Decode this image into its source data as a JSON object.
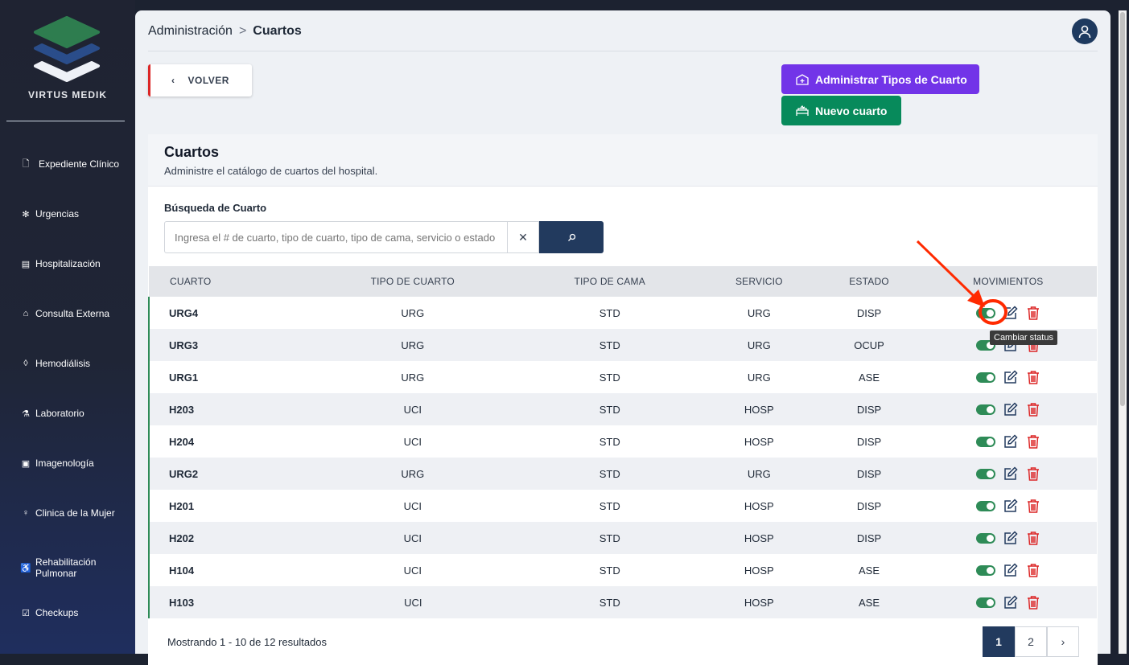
{
  "sidebar": {
    "brand": "VIRTUS MEDIK",
    "items": [
      {
        "label": "Expediente Clínico",
        "icon": "file-plus-icon"
      },
      {
        "label": "Urgencias",
        "icon": "asterisk-icon"
      },
      {
        "label": "Hospitalización",
        "icon": "building-icon"
      },
      {
        "label": "Consulta Externa",
        "icon": "clinic-icon"
      },
      {
        "label": "Hemodiálisis",
        "icon": "drop-icon"
      },
      {
        "label": "Laboratorio",
        "icon": "flask-icon"
      },
      {
        "label": "Imagenología",
        "icon": "image-icon"
      },
      {
        "label": "Clinica de la  Mujer",
        "icon": "female-icon"
      },
      {
        "label": "Rehabilitación Pulmonar",
        "icon": "wheelchair-icon"
      },
      {
        "label": "Checkups",
        "icon": "checkbox-icon"
      }
    ]
  },
  "breadcrumb": {
    "parent": "Administración",
    "current": "Cuartos"
  },
  "toolbar": {
    "back": "VOLVER",
    "manage_types": "Administrar Tipos de Cuarto",
    "new_room": "Nuevo cuarto"
  },
  "card": {
    "title": "Cuartos",
    "subtitle": "Administre el catálogo de cuartos del hospital."
  },
  "search": {
    "label": "Búsqueda de Cuarto",
    "placeholder": "Ingresa el # de cuarto, tipo de cuarto, tipo de cama, servicio o estado",
    "value": ""
  },
  "table": {
    "headers": [
      "CUARTO",
      "TIPO DE CUARTO",
      "TIPO DE CAMA",
      "SERVICIO",
      "ESTADO",
      "MOVIMIENTOS"
    ],
    "rows": [
      [
        "URG4",
        "URG",
        "STD",
        "URG",
        "DISP"
      ],
      [
        "URG3",
        "URG",
        "STD",
        "URG",
        "OCUP"
      ],
      [
        "URG1",
        "URG",
        "STD",
        "URG",
        "ASE"
      ],
      [
        "H203",
        "UCI",
        "STD",
        "HOSP",
        "DISP"
      ],
      [
        "H204",
        "UCI",
        "STD",
        "HOSP",
        "DISP"
      ],
      [
        "URG2",
        "URG",
        "STD",
        "URG",
        "DISP"
      ],
      [
        "H201",
        "UCI",
        "STD",
        "HOSP",
        "DISP"
      ],
      [
        "H202",
        "UCI",
        "STD",
        "HOSP",
        "DISP"
      ],
      [
        "H104",
        "UCI",
        "STD",
        "HOSP",
        "ASE"
      ],
      [
        "H103",
        "UCI",
        "STD",
        "HOSP",
        "ASE"
      ]
    ]
  },
  "tooltip": "Cambiar status",
  "footer": {
    "summary": "Mostrando 1 - 10 de 12 resultados",
    "pages": [
      "1",
      "2"
    ],
    "current_page": 1
  },
  "colors": {
    "purple": "#7234e8",
    "green": "#078a5b",
    "navy": "#223a5e",
    "danger": "#dc2626",
    "annotation": "#ff2a00"
  }
}
